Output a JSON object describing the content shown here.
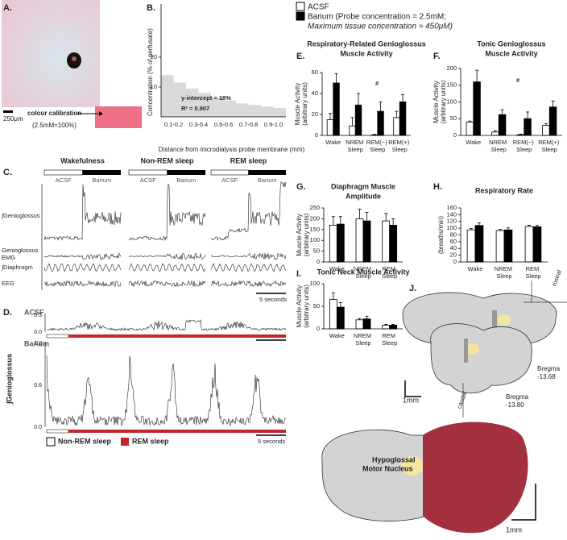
{
  "panel_labels": [
    "A.",
    "B.",
    "C.",
    "D.",
    "E.",
    "F.",
    "G.",
    "H.",
    "I.",
    "J."
  ],
  "panel_a": {
    "scale_bar": "250μm",
    "calibration_label": "colour calibration",
    "calibration_note": "(2.5mM=100%)"
  },
  "legend": {
    "acsf": "ACSF",
    "barium": "Barium (Probe concentration = 2.5mM;",
    "barium_note": "Maximum tissue concentration ≈ 450μM)"
  },
  "chart_data": [
    {
      "type": "bar",
      "ylabel": [
        "Concentration (% of perfusate)"
      ],
      "xlabel": "Distance from microdialysis probe membrane (mm)",
      "categories": [
        "0.1-0.2",
        null,
        "0.3-0.4",
        null,
        "0.5-0.6",
        null,
        "0.7-0.8",
        null,
        "0.9-1.0",
        null
      ],
      "values": [
        14,
        11.5,
        9.5,
        8,
        6.5,
        5.5,
        4.5,
        4,
        3.5,
        3
      ],
      "color": "#d9d9d9",
      "ylim": [
        0,
        30
      ],
      "yticks": [
        10,
        20
      ],
      "annotations": [
        "y-intercept = 18%",
        "R² = 0.907"
      ]
    },
    {
      "type": "grouped_bar",
      "title": [
        "Respiratory-Related Genioglossus",
        "Muscle Activity"
      ],
      "ylabel": [
        "Muscle Activity",
        "(arbitrary units)"
      ],
      "categories": [
        "Wake",
        "NREM Sleep",
        "REM(−) Sleep",
        "REM(+) Sleep"
      ],
      "series": [
        {
          "color": "#ffffff",
          "values": [
            15,
            9,
            0.5,
            17
          ],
          "errors": [
            6,
            8,
            0.5,
            6
          ]
        },
        {
          "color": "#000000",
          "values": [
            50,
            29,
            23,
            32
          ],
          "errors": [
            9,
            11,
            9,
            7
          ]
        }
      ],
      "ylim": [
        0,
        60
      ],
      "yticks": [
        0,
        20,
        40,
        60
      ],
      "annotations": [
        "#"
      ]
    },
    {
      "type": "grouped_bar",
      "title": [
        "Tonic Genioglossus",
        "Muscle Activity"
      ],
      "ylabel": [
        "Muscle Activity",
        "(arbitrary units)"
      ],
      "categories": [
        "Wake",
        "NREM Sleep",
        "REM(−) Sleep",
        "REM(+) Sleep"
      ],
      "series": [
        {
          "color": "#ffffff",
          "values": [
            40,
            10,
            2,
            30
          ],
          "errors": [
            3,
            4,
            2,
            5
          ]
        },
        {
          "color": "#000000",
          "values": [
            160,
            62,
            50,
            85
          ],
          "errors": [
            35,
            15,
            20,
            18
          ]
        }
      ],
      "ylim": [
        0,
        200
      ],
      "yticks": [
        0,
        50,
        100,
        150,
        200
      ],
      "annotations": [
        "#"
      ]
    },
    {
      "type": "grouped_bar",
      "title": [
        "Diaphragm Muscle",
        "Amplitude"
      ],
      "ylabel": [
        "Muscle Activity",
        "(arbitrary units)"
      ],
      "categories": [
        "Wake",
        "NREM Sleep",
        "REM Sleep"
      ],
      "series": [
        {
          "color": "#ffffff",
          "values": [
            170,
            200,
            190
          ],
          "errors": [
            40,
            45,
            35
          ]
        },
        {
          "color": "#000000",
          "values": [
            175,
            190,
            170
          ],
          "errors": [
            35,
            40,
            30
          ]
        }
      ],
      "ylim": [
        0,
        250
      ],
      "yticks": [
        0,
        50,
        100,
        150,
        200,
        250
      ]
    },
    {
      "type": "grouped_bar",
      "title": [
        "Respiratory Rate"
      ],
      "ylabel": [
        "(breaths/min)"
      ],
      "categories": [
        "Wake",
        "NREM Sleep",
        "REM Sleep"
      ],
      "series": [
        {
          "color": "#ffffff",
          "values": [
            95,
            93,
            105
          ],
          "errors": [
            4,
            4,
            4
          ]
        },
        {
          "color": "#000000",
          "values": [
            108,
            95,
            104
          ],
          "errors": [
            8,
            6,
            4
          ]
        }
      ],
      "ylim": [
        0,
        160
      ],
      "yticks": [
        0,
        20,
        40,
        60,
        80,
        100,
        120,
        140,
        160
      ]
    },
    {
      "type": "grouped_bar",
      "title": [
        "Tonic Neck Muscle Activity"
      ],
      "ylabel": [
        "Muscle Activity",
        "(arbitrary units)"
      ],
      "categories": [
        "Wake",
        "NREM Sleep",
        "REM Sleep"
      ],
      "series": [
        {
          "color": "#ffffff",
          "values": [
            65,
            20,
            8
          ],
          "errors": [
            15,
            3,
            2
          ]
        },
        {
          "color": "#000000",
          "values": [
            48,
            22,
            8
          ],
          "errors": [
            10,
            6,
            2
          ]
        }
      ],
      "ylim": [
        0,
        100
      ],
      "yticks": [
        0,
        50,
        100
      ]
    }
  ],
  "panel_c": {
    "states": [
      "Wakefulness",
      "Non-REM sleep",
      "REM sleep"
    ],
    "acsf": "ACSF",
    "barium": "Barium",
    "rows": [
      "∫Genioglossus",
      "Genioglossus",
      "EMG",
      "∫Diaphragm",
      "EEG"
    ],
    "scale": "5 seconds"
  },
  "panel_d": {
    "acsf_label": "ACSF",
    "barium_label": "Barium",
    "ylabel": "∫Genioglossus",
    "acsf_ticks": [
      "0.0",
      "0.3"
    ],
    "barium_ticks": [
      "0.0",
      "0.6",
      "1.2"
    ],
    "legend": [
      "Non-REM sleep",
      "REM sleep"
    ],
    "scale": "5 seconds"
  },
  "panel_j": {
    "rostral": "rostral",
    "caudal": "caudal",
    "bregma_upper": [
      "Bregma",
      "-13.68"
    ],
    "bregma_lower": [
      "Bregma",
      "-13.80"
    ],
    "scale_upper": "1mm",
    "nucleus": [
      "Hypoglossal",
      "Motor Nucleus"
    ],
    "scale_lower": "1mm"
  }
}
